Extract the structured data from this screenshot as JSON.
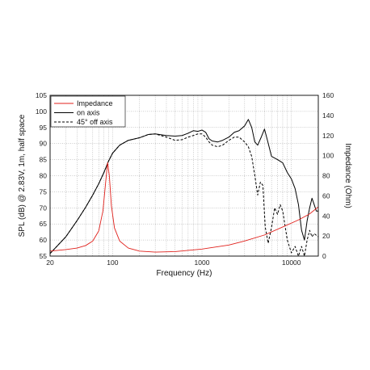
{
  "chart_data": {
    "type": "line",
    "xlabel": "Frequency (Hz)",
    "ylabel_left": "SPL (dB) @ 2.83V, 1m, half space",
    "ylabel_right": "Impedance (Ohm)",
    "x_scale": "log",
    "xlim": [
      20,
      20000
    ],
    "ylim_left": [
      55,
      105
    ],
    "ylim_right": [
      0,
      160
    ],
    "x_ticks": [
      {
        "value": 20,
        "label": "20"
      },
      {
        "value": 100,
        "label": "100"
      },
      {
        "value": 1000,
        "label": "1000"
      },
      {
        "value": 10000,
        "label": "10000"
      }
    ],
    "y_ticks_left": [
      55,
      60,
      65,
      70,
      75,
      80,
      85,
      90,
      95,
      100,
      105
    ],
    "y_ticks_right": [
      0,
      20,
      40,
      60,
      80,
      100,
      120,
      140,
      160
    ],
    "grid": true,
    "legend_position": "top-left",
    "series": [
      {
        "name": "Impedance",
        "axis": "right",
        "color": "#e0201b",
        "style": "solid",
        "points": [
          [
            20,
            5
          ],
          [
            30,
            6.5
          ],
          [
            40,
            8
          ],
          [
            50,
            10.5
          ],
          [
            60,
            15
          ],
          [
            70,
            25
          ],
          [
            78,
            45
          ],
          [
            84,
            75
          ],
          [
            88,
            93
          ],
          [
            92,
            80
          ],
          [
            97,
            50
          ],
          [
            105,
            28
          ],
          [
            120,
            15
          ],
          [
            150,
            8
          ],
          [
            200,
            5
          ],
          [
            300,
            4
          ],
          [
            500,
            4.5
          ],
          [
            1000,
            7
          ],
          [
            2000,
            11
          ],
          [
            3000,
            15
          ],
          [
            5000,
            21
          ],
          [
            8000,
            29
          ],
          [
            12000,
            36
          ],
          [
            16000,
            42
          ],
          [
            20000,
            49
          ]
        ]
      },
      {
        "name": "on axis",
        "axis": "left",
        "color": "#000000",
        "style": "solid",
        "points": [
          [
            20,
            55.8
          ],
          [
            30,
            61
          ],
          [
            40,
            66
          ],
          [
            50,
            70.2
          ],
          [
            60,
            74
          ],
          [
            70,
            77.5
          ],
          [
            80,
            81
          ],
          [
            90,
            84.5
          ],
          [
            100,
            87
          ],
          [
            120,
            89.5
          ],
          [
            150,
            91
          ],
          [
            200,
            91.8
          ],
          [
            250,
            92.8
          ],
          [
            300,
            93
          ],
          [
            400,
            92.5
          ],
          [
            500,
            92.3
          ],
          [
            600,
            92.5
          ],
          [
            700,
            93.2
          ],
          [
            800,
            94
          ],
          [
            900,
            93.8
          ],
          [
            1000,
            94.2
          ],
          [
            1100,
            93.5
          ],
          [
            1200,
            91.5
          ],
          [
            1300,
            90.8
          ],
          [
            1500,
            90.5
          ],
          [
            1700,
            91
          ],
          [
            2000,
            92
          ],
          [
            2300,
            93.5
          ],
          [
            2600,
            94
          ],
          [
            3000,
            95.5
          ],
          [
            3300,
            97.5
          ],
          [
            3600,
            95
          ],
          [
            3900,
            90.5
          ],
          [
            4200,
            89.5
          ],
          [
            4600,
            92
          ],
          [
            5000,
            94.5
          ],
          [
            5400,
            91
          ],
          [
            6000,
            86
          ],
          [
            7000,
            85
          ],
          [
            8000,
            84
          ],
          [
            9000,
            81
          ],
          [
            10000,
            79
          ],
          [
            11000,
            76
          ],
          [
            12000,
            71
          ],
          [
            13000,
            63
          ],
          [
            14000,
            60
          ],
          [
            15000,
            66
          ],
          [
            16000,
            70
          ],
          [
            17000,
            73
          ],
          [
            18000,
            71
          ],
          [
            19000,
            69
          ],
          [
            20000,
            69
          ]
        ]
      },
      {
        "name": "45° off axis",
        "axis": "left",
        "color": "#000000",
        "style": "dashed",
        "points": [
          [
            20,
            55.8
          ],
          [
            30,
            61
          ],
          [
            40,
            66
          ],
          [
            50,
            70.2
          ],
          [
            60,
            74
          ],
          [
            70,
            77.5
          ],
          [
            80,
            81
          ],
          [
            90,
            84.5
          ],
          [
            100,
            87
          ],
          [
            120,
            89.5
          ],
          [
            150,
            91
          ],
          [
            200,
            91.8
          ],
          [
            250,
            92.8
          ],
          [
            300,
            93
          ],
          [
            400,
            92
          ],
          [
            500,
            91
          ],
          [
            600,
            91.2
          ],
          [
            700,
            92
          ],
          [
            800,
            92.5
          ],
          [
            900,
            93
          ],
          [
            1000,
            93
          ],
          [
            1100,
            92
          ],
          [
            1200,
            90.5
          ],
          [
            1300,
            89.5
          ],
          [
            1500,
            89
          ],
          [
            1700,
            89.5
          ],
          [
            2000,
            91
          ],
          [
            2300,
            92
          ],
          [
            2600,
            92
          ],
          [
            3000,
            90.5
          ],
          [
            3300,
            89
          ],
          [
            3600,
            86
          ],
          [
            3900,
            80
          ],
          [
            4200,
            74
          ],
          [
            4500,
            78
          ],
          [
            4800,
            77
          ],
          [
            5100,
            64
          ],
          [
            5500,
            59
          ],
          [
            6000,
            64
          ],
          [
            6500,
            70
          ],
          [
            7000,
            68
          ],
          [
            7500,
            71
          ],
          [
            8000,
            69
          ],
          [
            9000,
            60
          ],
          [
            10000,
            56
          ],
          [
            11000,
            58
          ],
          [
            12000,
            55
          ],
          [
            13000,
            58
          ],
          [
            14000,
            55
          ],
          [
            15000,
            60
          ],
          [
            16000,
            63
          ],
          [
            17000,
            61
          ],
          [
            18000,
            62
          ],
          [
            20000,
            61
          ]
        ]
      }
    ]
  }
}
